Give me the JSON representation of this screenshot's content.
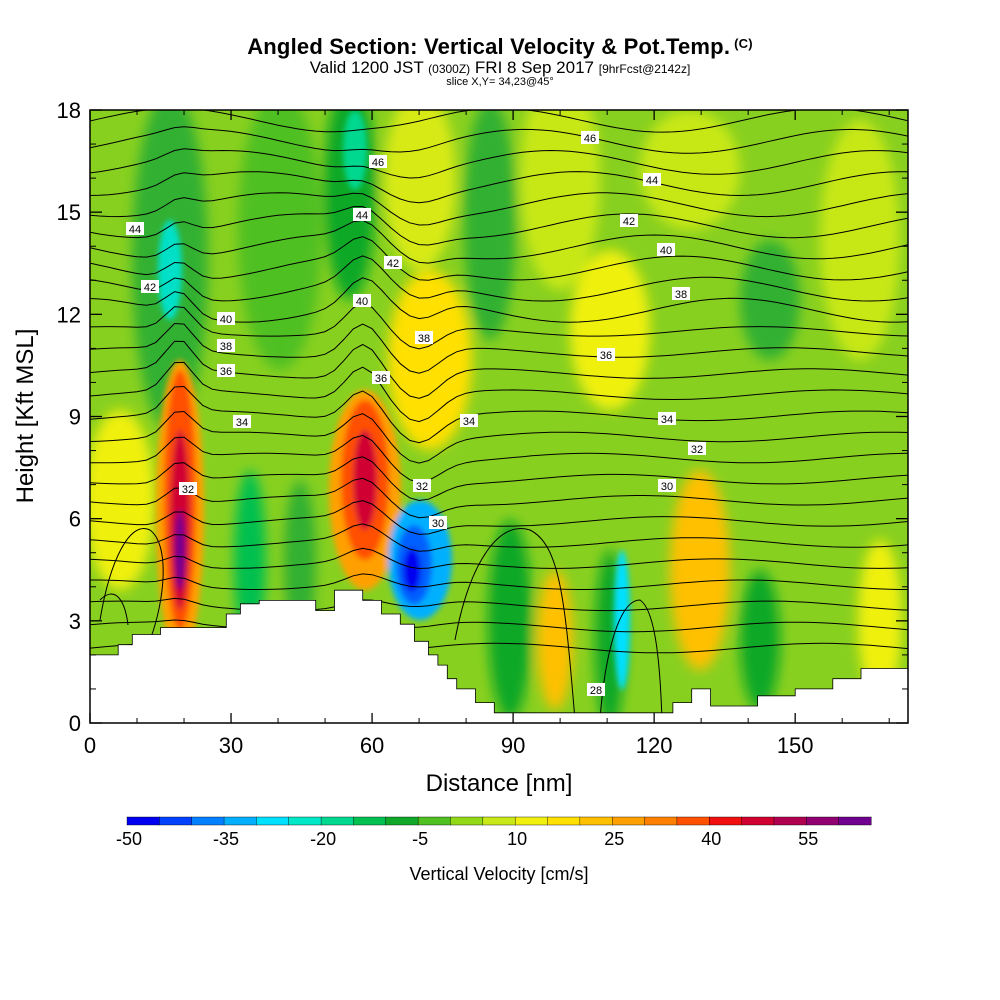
{
  "title": {
    "main": "Angled Section: Vertical Velocity & Pot.Temp.",
    "main_suffix": "(C)",
    "valid_a": "Valid 1200 JST",
    "valid_b": "(0300Z)",
    "valid_c": "FRI 8 Sep 2017",
    "valid_d": "[9hrFcst@2142z]",
    "slice": "slice X,Y= 34,23@45°"
  },
  "chart_data": {
    "type": "heatmap",
    "xlabel": "Distance [nm]",
    "ylabel": "Height [Kft MSL]",
    "xlim": [
      0,
      174
    ],
    "ylim": [
      0,
      18
    ],
    "x_ticks": [
      "0",
      "30",
      "60",
      "90",
      "120",
      "150"
    ],
    "y_ticks": [
      "0",
      "3",
      "6",
      "9",
      "12",
      "15",
      "18"
    ],
    "colorbar": {
      "label": "Vertical Velocity [cm/s]",
      "tick_labels": [
        "-50",
        "-35",
        "-20",
        "-5",
        "10",
        "25",
        "40",
        "55"
      ],
      "colors": [
        "#0000f0",
        "#0040ff",
        "#0080ff",
        "#00b0ff",
        "#00e0ff",
        "#00e8c8",
        "#00d890",
        "#00c050",
        "#10a828",
        "#50c020",
        "#90d818",
        "#c8e818",
        "#f0f010",
        "#ffe000",
        "#ffc000",
        "#ffa000",
        "#ff8000",
        "#ff5000",
        "#f01010",
        "#d00030",
        "#b00050",
        "#900070",
        "#700090"
      ]
    },
    "ws_contour_labels": [
      "46",
      "44",
      "42",
      "40",
      "38",
      "36",
      "34",
      "32",
      "30",
      "28"
    ],
    "terrain_kft": [
      [
        0,
        2
      ],
      [
        6,
        2
      ],
      [
        6,
        2.3
      ],
      [
        9,
        2.3
      ],
      [
        9,
        2.6
      ],
      [
        15,
        2.6
      ],
      [
        15,
        2.8
      ],
      [
        29,
        2.8
      ],
      [
        29,
        3.2
      ],
      [
        32,
        3.2
      ],
      [
        32,
        3.5
      ],
      [
        36,
        3.5
      ],
      [
        36,
        3.6
      ],
      [
        48,
        3.6
      ],
      [
        48,
        3.3
      ],
      [
        52,
        3.3
      ],
      [
        52,
        3.9
      ],
      [
        58,
        3.9
      ],
      [
        58,
        3.6
      ],
      [
        62,
        3.6
      ],
      [
        62,
        3.2
      ],
      [
        66,
        3.2
      ],
      [
        66,
        2.9
      ],
      [
        69,
        2.9
      ],
      [
        69,
        2.4
      ],
      [
        72,
        2.4
      ],
      [
        72,
        2.0
      ],
      [
        74,
        2.0
      ],
      [
        74,
        1.7
      ],
      [
        76,
        1.7
      ],
      [
        76,
        1.3
      ],
      [
        78,
        1.3
      ],
      [
        78,
        1.0
      ],
      [
        82,
        1.0
      ],
      [
        82,
        0.6
      ],
      [
        86,
        0.6
      ],
      [
        86,
        0.3
      ],
      [
        124,
        0.3
      ],
      [
        124,
        0.6
      ],
      [
        128,
        0.6
      ],
      [
        128,
        1.0
      ],
      [
        132,
        1.0
      ],
      [
        132,
        0.5
      ],
      [
        142,
        0.5
      ],
      [
        142,
        0.8
      ],
      [
        150,
        0.8
      ],
      [
        150,
        1.0
      ],
      [
        158,
        1.0
      ],
      [
        158,
        1.3
      ],
      [
        164,
        1.3
      ],
      [
        164,
        1.6
      ],
      [
        174,
        1.6
      ]
    ]
  }
}
